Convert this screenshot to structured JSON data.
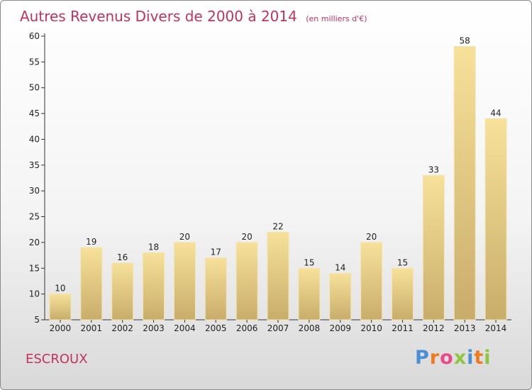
{
  "chart_data": {
    "type": "bar",
    "title": "Autres Revenus Divers de 2000 à 2014",
    "subtitle": "(en milliers d'€)",
    "categories": [
      "2000",
      "2001",
      "2002",
      "2003",
      "2004",
      "2005",
      "2006",
      "2007",
      "2008",
      "2009",
      "2010",
      "2011",
      "2012",
      "2013",
      "2014"
    ],
    "values": [
      10,
      19,
      16,
      18,
      20,
      17,
      20,
      22,
      15,
      14,
      20,
      15,
      33,
      58,
      44
    ],
    "ylim": [
      5,
      60
    ],
    "yticks": [
      5,
      10,
      15,
      20,
      25,
      30,
      35,
      40,
      45,
      50,
      55,
      60
    ],
    "grid": false,
    "bar_color_top": "#f7e19a",
    "bar_color_bottom": "#c8ad6a"
  },
  "footer": {
    "commune": "ESCROUX",
    "brand": "Proxiti",
    "brand_colors": [
      "#4a8fd4",
      "#f07a1e",
      "#e84a8a",
      "#8cc63f",
      "#4a8fd4",
      "#f07a1e",
      "#8cc63f"
    ]
  },
  "colors": {
    "title": "#c0335e"
  }
}
